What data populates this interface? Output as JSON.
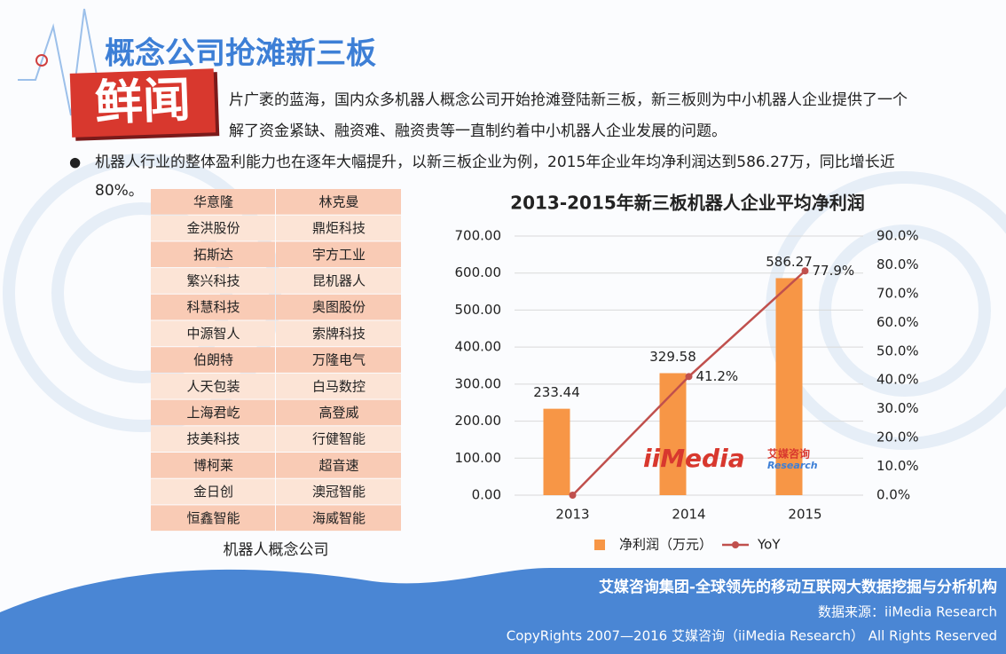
{
  "header": {
    "title": "概念公司抢滩新三板",
    "stamp": "鲜闻"
  },
  "bullets": [
    [
      "片广袤的蓝海，国内众多机器人概念公司开始抢滩登陆新三板，新三板则为中小机器人企业提供了一个",
      "解了资金紧缺、融资难、融资贵等一直制约着中小机器人企业发展的问题。"
    ],
    [
      "机器人行业的整体盈利能力也在逐年大幅提升，以新三板企业为例，2015年企业年均净利润达到586.27万，同比增长近",
      "80%。"
    ]
  ],
  "table": {
    "rows": [
      [
        "华意隆",
        "林克曼"
      ],
      [
        "金洪股份",
        "鼎炬科技"
      ],
      [
        "拓斯达",
        "宇方工业"
      ],
      [
        "繁兴科技",
        "昆机器人"
      ],
      [
        "科慧科技",
        "奥图股份"
      ],
      [
        "中源智人",
        "索牌科技"
      ],
      [
        "伯朗特",
        "万隆电气"
      ],
      [
        "人天包装",
        "白马数控"
      ],
      [
        "上海君屹",
        "高登威"
      ],
      [
        "技美科技",
        "行健智能"
      ],
      [
        "博柯莱",
        "超音速"
      ],
      [
        "金日创",
        "澳冠智能"
      ],
      [
        "恒鑫智能",
        "海威智能"
      ]
    ],
    "caption": "机器人概念公司"
  },
  "chart_data": {
    "type": "bar",
    "title": "2013-2015年新三板机器人企业平均净利润",
    "categories": [
      "2013",
      "2014",
      "2015"
    ],
    "series": [
      {
        "name": "净利润（万元）",
        "type": "bar",
        "color": "#f79646",
        "values": [
          233.44,
          329.58,
          586.27
        ]
      },
      {
        "name": "YoY",
        "type": "line",
        "axis": "y2",
        "color": "#c0504d",
        "values": [
          0,
          41.2,
          77.9
        ],
        "value_labels": [
          null,
          "41.2%",
          "77.9%"
        ]
      }
    ],
    "ylim": [
      0,
      700
    ],
    "yticks": [
      {
        "value": 0,
        "label": "0.00"
      },
      {
        "value": 100,
        "label": "100.00"
      },
      {
        "value": 200,
        "label": "200.00"
      },
      {
        "value": 300,
        "label": "300.00"
      },
      {
        "value": 400,
        "label": "400.00"
      },
      {
        "value": 500,
        "label": "500.00"
      },
      {
        "value": 600,
        "label": "600.00"
      },
      {
        "value": 700,
        "label": "700.00"
      }
    ],
    "y2lim": [
      0,
      90
    ],
    "y2ticks": [
      {
        "value": 0,
        "label": "0.0%"
      },
      {
        "value": 10,
        "label": "10.0%"
      },
      {
        "value": 20,
        "label": "20.0%"
      },
      {
        "value": 30,
        "label": "30.0%"
      },
      {
        "value": 40,
        "label": "40.0%"
      },
      {
        "value": 50,
        "label": "50.0%"
      },
      {
        "value": 60,
        "label": "60.0%"
      },
      {
        "value": 70,
        "label": "70.0%"
      },
      {
        "value": 80,
        "label": "80.0%"
      },
      {
        "value": 90,
        "label": "90.0%"
      }
    ],
    "grid": true,
    "legend": "bottom"
  },
  "logo": {
    "name": "iiMedia",
    "cn": "艾媒咨询",
    "en": "Research"
  },
  "footer": {
    "slogan": "艾媒咨询集团-全球领先的移动互联网大数据挖掘与分析机构",
    "source": "数据来源：iiMedia Research",
    "copyright": "CopyRights 2007—2016 艾媒咨询（iiMedia Research） All Rights Reserved"
  }
}
